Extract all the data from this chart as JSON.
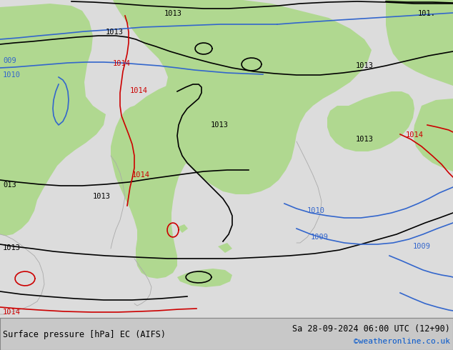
{
  "title_left": "Surface pressure [hPa] EC (AIFS)",
  "title_right": "Sa 28-09-2024 06:00 UTC (12+90)",
  "credit": "©weatheronline.co.uk",
  "bg_color": "#dcdcdc",
  "green_fill_color": "#b0d890",
  "coast_color": "#aaaaaa",
  "black_isobar_color": "#000000",
  "red_isobar_color": "#cc0000",
  "blue_isobar_color": "#3366cc",
  "bottom_bar_color": "#c8c8c8",
  "isobar_lw": 1.2,
  "coast_lw": 0.6,
  "label_fontsize": 7.5
}
